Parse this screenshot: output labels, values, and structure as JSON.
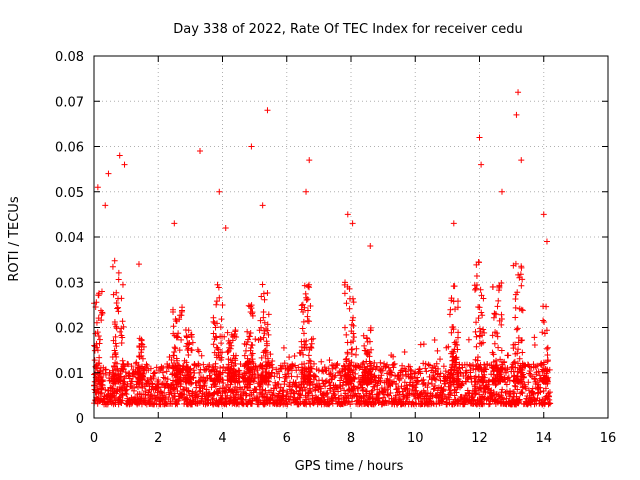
{
  "chart_data": {
    "type": "scatter",
    "title": "Day 338 of 2022, Rate Of TEC Index for receiver cedu",
    "xlabel": "GPS time / hours",
    "ylabel": "ROTI / TECUs",
    "xlim": [
      0,
      16
    ],
    "ylim": [
      0,
      0.08
    ],
    "x_ticks": [
      0,
      2,
      4,
      6,
      8,
      10,
      12,
      14,
      16
    ],
    "y_ticks": [
      0,
      0.01,
      0.02,
      0.03,
      0.04,
      0.05,
      0.06,
      0.07,
      0.08
    ],
    "x_tick_labels": [
      "0",
      "2",
      "4",
      "6",
      "8",
      "10",
      "12",
      "14",
      "16"
    ],
    "y_tick_labels": [
      "0",
      "0.01",
      "0.02",
      "0.03",
      "0.04",
      "0.05",
      "0.06",
      "0.07",
      "0.08"
    ],
    "grid": true,
    "marker": "+",
    "color": "#ff0000",
    "series": [
      {
        "name": "ROTI",
        "x_range": [
          0.0,
          14.2
        ],
        "baseline_band": [
          0.003,
          0.012
        ],
        "samples": 2200,
        "notable_points": [
          {
            "x": 0.12,
            "y": 0.051
          },
          {
            "x": 0.35,
            "y": 0.047
          },
          {
            "x": 0.45,
            "y": 0.054
          },
          {
            "x": 0.8,
            "y": 0.058
          },
          {
            "x": 0.95,
            "y": 0.056
          },
          {
            "x": 1.4,
            "y": 0.034
          },
          {
            "x": 2.5,
            "y": 0.043
          },
          {
            "x": 3.3,
            "y": 0.059
          },
          {
            "x": 3.9,
            "y": 0.05
          },
          {
            "x": 4.1,
            "y": 0.042
          },
          {
            "x": 4.9,
            "y": 0.06
          },
          {
            "x": 5.4,
            "y": 0.068
          },
          {
            "x": 5.25,
            "y": 0.047
          },
          {
            "x": 6.7,
            "y": 0.057
          },
          {
            "x": 6.6,
            "y": 0.05
          },
          {
            "x": 7.9,
            "y": 0.045
          },
          {
            "x": 8.05,
            "y": 0.043
          },
          {
            "x": 8.6,
            "y": 0.038
          },
          {
            "x": 11.2,
            "y": 0.043
          },
          {
            "x": 12.0,
            "y": 0.062
          },
          {
            "x": 12.05,
            "y": 0.056
          },
          {
            "x": 12.7,
            "y": 0.05
          },
          {
            "x": 13.15,
            "y": 0.067
          },
          {
            "x": 13.2,
            "y": 0.072
          },
          {
            "x": 13.3,
            "y": 0.057
          },
          {
            "x": 14.0,
            "y": 0.045
          },
          {
            "x": 14.1,
            "y": 0.039
          }
        ],
        "bursts": [
          {
            "center": 0.1,
            "width": 0.35,
            "peak": 0.03
          },
          {
            "center": 0.75,
            "width": 0.35,
            "peak": 0.035
          },
          {
            "center": 1.45,
            "width": 0.2,
            "peak": 0.02
          },
          {
            "center": 2.6,
            "width": 0.3,
            "peak": 0.025
          },
          {
            "center": 2.95,
            "width": 0.2,
            "peak": 0.02
          },
          {
            "center": 3.85,
            "width": 0.3,
            "peak": 0.03
          },
          {
            "center": 4.3,
            "width": 0.3,
            "peak": 0.02
          },
          {
            "center": 4.8,
            "width": 0.3,
            "peak": 0.025
          },
          {
            "center": 5.3,
            "width": 0.3,
            "peak": 0.03
          },
          {
            "center": 6.6,
            "width": 0.3,
            "peak": 0.03
          },
          {
            "center": 7.95,
            "width": 0.3,
            "peak": 0.03
          },
          {
            "center": 8.5,
            "width": 0.3,
            "peak": 0.02
          },
          {
            "center": 11.2,
            "width": 0.3,
            "peak": 0.03
          },
          {
            "center": 12.0,
            "width": 0.3,
            "peak": 0.035
          },
          {
            "center": 12.55,
            "width": 0.3,
            "peak": 0.03
          },
          {
            "center": 13.2,
            "width": 0.3,
            "peak": 0.035
          },
          {
            "center": 14.05,
            "width": 0.2,
            "peak": 0.025
          }
        ]
      }
    ]
  }
}
